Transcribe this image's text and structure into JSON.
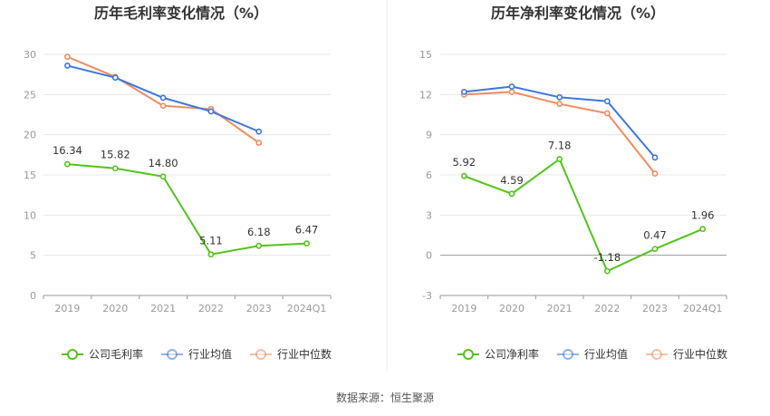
{
  "chart_data": [
    {
      "type": "line",
      "title": "历年毛利率变化情况（%）",
      "categories": [
        "2019",
        "2020",
        "2021",
        "2022",
        "2023",
        "2024Q1"
      ],
      "yticks": [
        0,
        5,
        10,
        15,
        20,
        25,
        30
      ],
      "ylim": [
        0,
        30
      ],
      "grid": true,
      "legend_position": "bottom",
      "series": [
        {
          "name": "公司毛利率",
          "color": "#52c41a",
          "values": [
            16.34,
            15.82,
            14.8,
            5.11,
            6.18,
            6.47
          ],
          "labels": [
            "16.34",
            "15.82",
            "14.80",
            "5.11",
            "6.18",
            "6.47"
          ]
        },
        {
          "name": "行业均值",
          "color": "#3d76dd",
          "values": [
            28.6,
            27.1,
            24.6,
            22.9,
            20.4,
            null
          ]
        },
        {
          "name": "行业中位数",
          "color": "#f38b5e",
          "values": [
            29.7,
            27.2,
            23.6,
            23.2,
            19.0,
            null
          ]
        }
      ]
    },
    {
      "type": "line",
      "title": "历年净利率变化情况（%）",
      "categories": [
        "2019",
        "2020",
        "2021",
        "2022",
        "2023",
        "2024Q1"
      ],
      "yticks": [
        -3,
        0,
        3,
        6,
        9,
        12,
        15
      ],
      "ylim": [
        -3,
        15
      ],
      "grid": true,
      "legend_position": "bottom",
      "series": [
        {
          "name": "公司净利率",
          "color": "#52c41a",
          "values": [
            5.92,
            4.59,
            7.18,
            -1.18,
            0.47,
            1.96
          ],
          "labels": [
            "5.92",
            "4.59",
            "7.18",
            "-1.18",
            "0.47",
            "1.96"
          ]
        },
        {
          "name": "行业均值",
          "color": "#3d76dd",
          "values": [
            12.2,
            12.6,
            11.8,
            11.5,
            7.3,
            null
          ]
        },
        {
          "name": "行业中位数",
          "color": "#f38b5e",
          "values": [
            12.0,
            12.2,
            11.3,
            10.6,
            6.1,
            null
          ]
        }
      ]
    }
  ],
  "footer": {
    "source": "数据来源：恒生聚源"
  }
}
